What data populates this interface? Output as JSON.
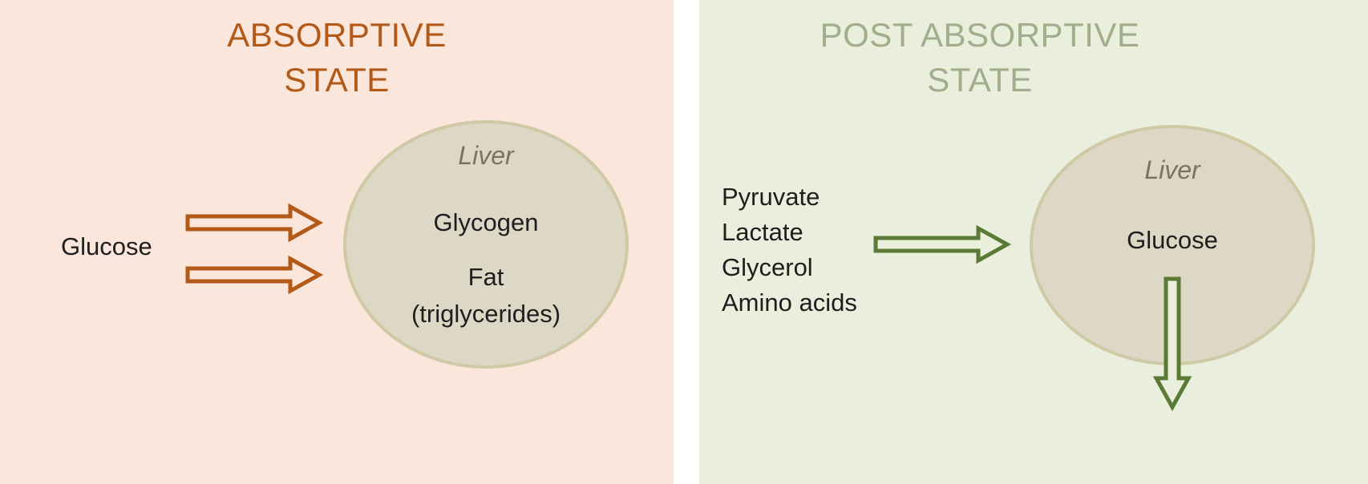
{
  "absorptive": {
    "title_line1": "ABSORPTIVE",
    "title_line2": "STATE",
    "input": "Glucose",
    "liver_label": "Liver",
    "products": [
      "Glycogen",
      "Fat",
      "(triglycerides)"
    ]
  },
  "post_absorptive": {
    "title_line1": "POST ABSORPTIVE",
    "title_line2": "STATE",
    "inputs": [
      "Pyruvate",
      "Lactate",
      "Glycerol",
      "Amino acids"
    ],
    "liver_label": "Liver",
    "product": "Glucose"
  },
  "colors": {
    "absorptive_bg": "#fbe6dc",
    "post_absorptive_bg": "#e9efdc",
    "absorptive_accent": "#b35a18",
    "post_absorptive_title": "#a3ad8c",
    "post_absorptive_arrow": "#5a7a36",
    "liver_fill": "#ddd7c6"
  }
}
